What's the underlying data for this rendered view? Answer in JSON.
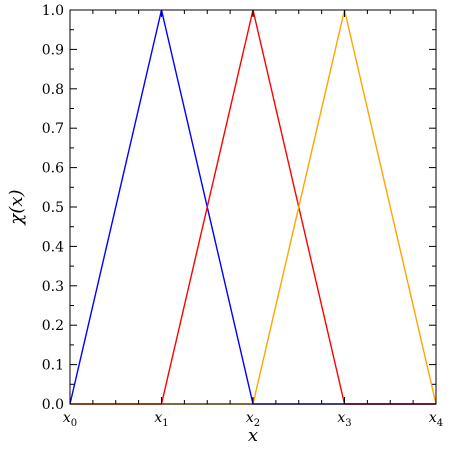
{
  "chart_data": {
    "type": "line",
    "x_tick_labels": [
      {
        "base": "x",
        "sub": "0"
      },
      {
        "base": "x",
        "sub": "1"
      },
      {
        "base": "x",
        "sub": "2"
      },
      {
        "base": "x",
        "sub": "3"
      },
      {
        "base": "x",
        "sub": "4"
      }
    ],
    "x": [
      0,
      1,
      2,
      3,
      4
    ],
    "xlim": [
      0,
      4
    ],
    "ylim": [
      0,
      1
    ],
    "y_ticks": [
      "0.0",
      "0.1",
      "0.2",
      "0.3",
      "0.4",
      "0.5",
      "0.6",
      "0.7",
      "0.8",
      "0.9",
      "1.0"
    ],
    "xlabel": "x",
    "ylabel": "χ(x)",
    "grid": false,
    "series": [
      {
        "color": "#0000ff",
        "points": [
          [
            0,
            0
          ],
          [
            1,
            1
          ],
          [
            2,
            0
          ],
          [
            4,
            0
          ]
        ]
      },
      {
        "color": "#ff0000",
        "points": [
          [
            0,
            0
          ],
          [
            1,
            0
          ],
          [
            2,
            1
          ],
          [
            3,
            0
          ],
          [
            4,
            0
          ]
        ]
      },
      {
        "color": "#ffa500",
        "points": [
          [
            0,
            0
          ],
          [
            2,
            0
          ],
          [
            3,
            1
          ],
          [
            4,
            0
          ]
        ]
      }
    ]
  }
}
